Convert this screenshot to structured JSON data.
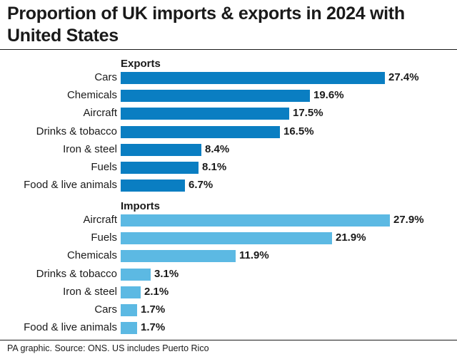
{
  "title": "Proportion of UK imports & exports in 2024 with United States",
  "source": "PA graphic. Source: ONS. US includes Puerto Rico",
  "colors": {
    "exports": "#0a7ec2",
    "imports": "#5cb9e3",
    "text": "#1a1a1a"
  },
  "chart_data": {
    "type": "bar",
    "orientation": "horizontal",
    "value_suffix": "%",
    "xlim": [
      0,
      30
    ],
    "groups": [
      {
        "name": "Exports",
        "categories": [
          "Cars",
          "Chemicals",
          "Aircraft",
          "Drinks & tobacco",
          "Iron & steel",
          "Fuels",
          "Food & live animals"
        ],
        "values": [
          27.4,
          19.6,
          17.5,
          16.5,
          8.4,
          8.1,
          6.7
        ]
      },
      {
        "name": "Imports",
        "categories": [
          "Aircraft",
          "Fuels",
          "Chemicals",
          "Drinks & tobacco",
          "Iron & steel",
          "Cars",
          "Food & live animals"
        ],
        "values": [
          27.9,
          21.9,
          11.9,
          3.1,
          2.1,
          1.7,
          1.7
        ]
      }
    ]
  }
}
